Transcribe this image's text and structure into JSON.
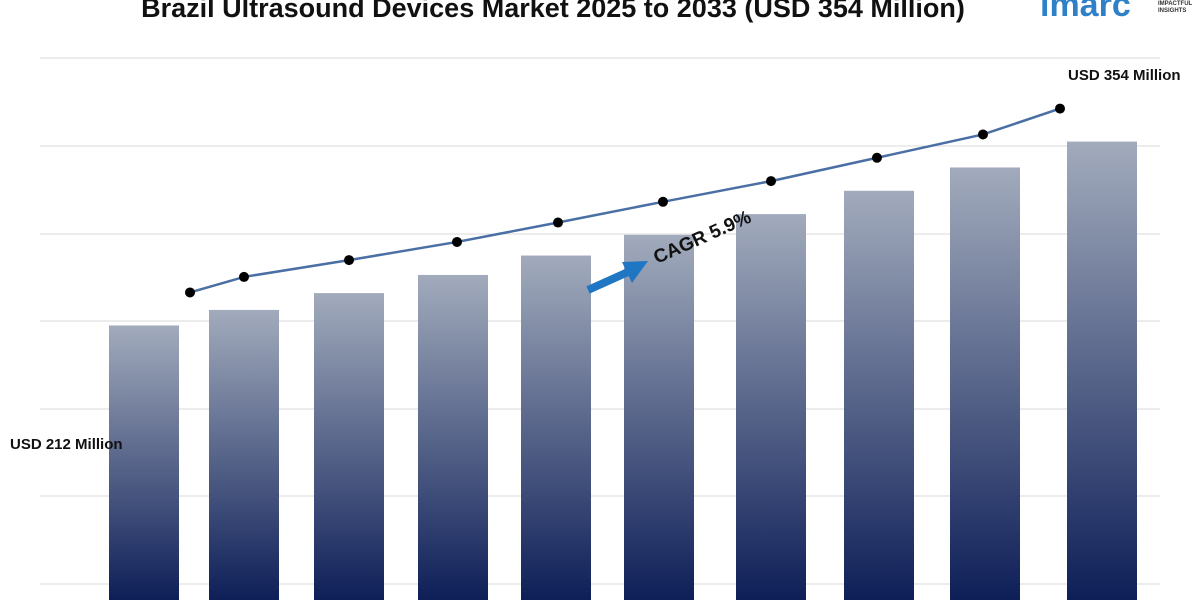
{
  "chart_data": {
    "type": "bar",
    "title": "Brazil Ultrasound Devices Market 2025 to 2033 (USD 354 Million)",
    "xlabel": "",
    "ylabel": "",
    "values": [
      212,
      224,
      237,
      251,
      266,
      282,
      298,
      316,
      334,
      354
    ],
    "ylim": [
      0,
      400
    ],
    "grid": true,
    "annotations": {
      "start_label": "USD 212 Million",
      "end_label": "USD 354 Million",
      "cagr_label": "CAGR 5.9%"
    },
    "overlay_line": {
      "type": "line",
      "markers": true
    }
  },
  "logo": {
    "word": "imarc",
    "tagline_1": "IMPACTFUL",
    "tagline_2": "INSIGHTS"
  },
  "colors": {
    "bar_top": "#a2abbc",
    "bar_bottom": "#0e1f58",
    "line": "#4a6fa5",
    "marker": "#000000",
    "arrow": "#1f77c4",
    "grid": "#d9d9d9",
    "logo": "#2f80c8"
  }
}
